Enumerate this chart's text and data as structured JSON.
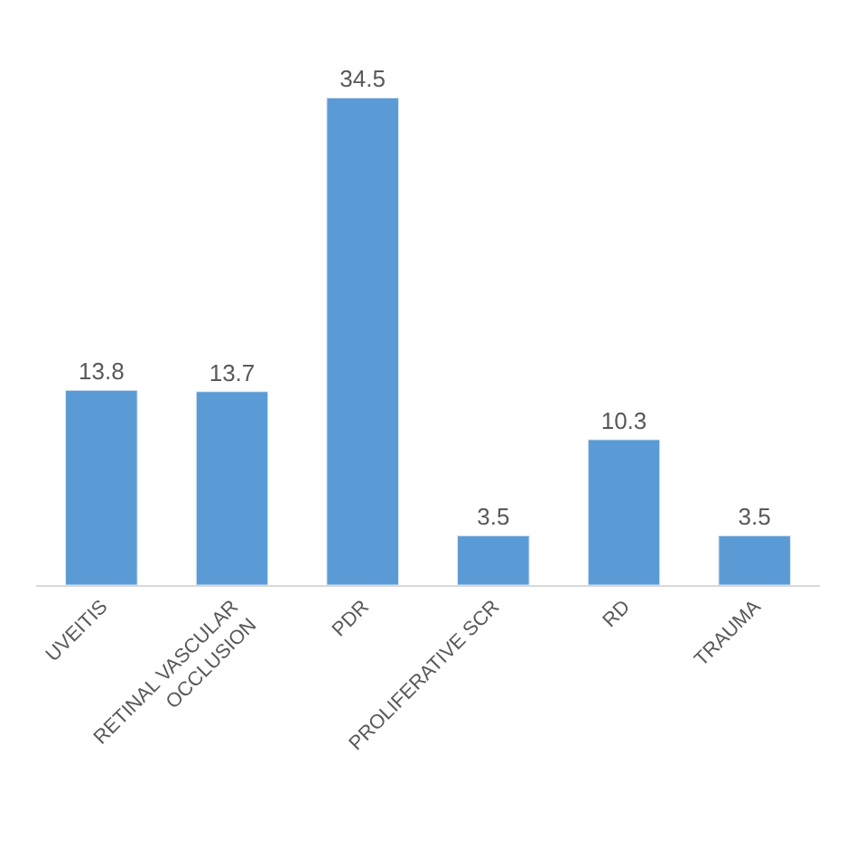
{
  "chart_data": {
    "type": "bar",
    "categories": [
      "UVEITIS",
      "RETINAL VASCULAR OCCLUSION",
      "PDR",
      "PROLIFERATIVE SCR",
      "RD",
      "TRAUMA"
    ],
    "values": [
      13.8,
      13.7,
      34.5,
      3.5,
      10.3,
      3.5
    ],
    "color": "#5b9bd5",
    "data_labels": true,
    "legend": false
  }
}
